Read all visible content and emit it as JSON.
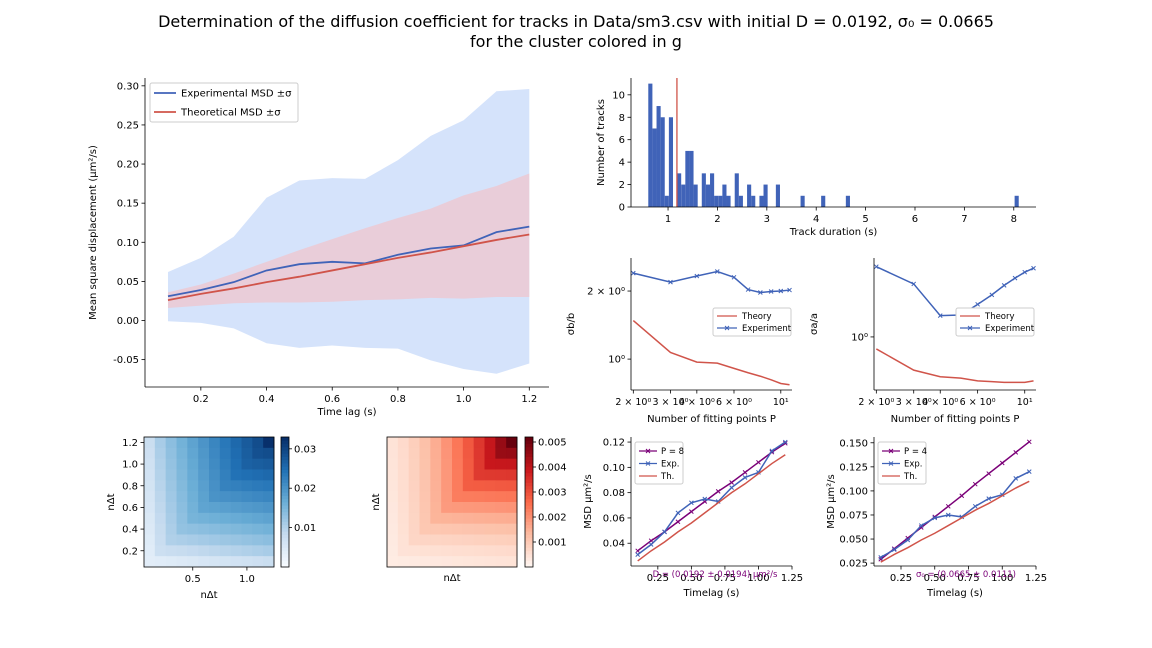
{
  "title": {
    "line1": "Determination of the diffusion coefficient for tracks in Data/sm3.csv with initial D = 0.0192, σ₀ = 0.0665",
    "line2": "for the cluster colored in g"
  },
  "colors": {
    "experiment": "#4063b8",
    "theory": "#d0544a",
    "exp_band": "#d5e3fb",
    "th_band": "#ecc9d2",
    "fit": "#7b0078"
  },
  "chart_data": [
    {
      "id": "msd",
      "type": "line",
      "xlabel": "Time lag (s)",
      "ylabel": "Mean square displacement (μm²/s)",
      "xlim": [
        0.03,
        1.26
      ],
      "ylim": [
        -0.085,
        0.31
      ],
      "xticks": [
        0.2,
        0.4,
        0.6,
        0.8,
        1.0,
        1.2
      ],
      "yticks": [
        -0.05,
        0.0,
        0.05,
        0.1,
        0.15,
        0.2,
        0.25,
        0.3
      ],
      "x": [
        0.1,
        0.2,
        0.3,
        0.4,
        0.5,
        0.6,
        0.7,
        0.8,
        0.9,
        1.0,
        1.1,
        1.2
      ],
      "legend": {
        "placement": "top-left",
        "entries": [
          "Experimental MSD ±σ",
          "Theoretical MSD ±σ"
        ]
      },
      "series": [
        {
          "name": "Experimental MSD ±σ",
          "values": [
            0.031,
            0.039,
            0.049,
            0.064,
            0.072,
            0.075,
            0.073,
            0.084,
            0.092,
            0.096,
            0.113,
            0.12
          ],
          "upper": [
            0.062,
            0.08,
            0.107,
            0.157,
            0.179,
            0.182,
            0.181,
            0.205,
            0.236,
            0.256,
            0.293,
            0.296
          ],
          "lower": [
            -0.001,
            -0.003,
            -0.01,
            -0.029,
            -0.035,
            -0.032,
            -0.035,
            -0.036,
            -0.051,
            -0.062,
            -0.068,
            -0.055
          ]
        },
        {
          "name": "Theoretical MSD ±σ",
          "values": [
            0.026,
            0.034,
            0.041,
            0.049,
            0.056,
            0.064,
            0.072,
            0.08,
            0.087,
            0.095,
            0.103,
            0.11
          ],
          "upper": [
            0.036,
            0.046,
            0.06,
            0.075,
            0.09,
            0.104,
            0.118,
            0.131,
            0.143,
            0.16,
            0.172,
            0.188
          ],
          "lower": [
            0.016,
            0.019,
            0.022,
            0.023,
            0.023,
            0.024,
            0.026,
            0.027,
            0.029,
            0.028,
            0.03,
            0.03
          ]
        }
      ]
    },
    {
      "id": "hist",
      "type": "bar",
      "xlabel": "Track duration (s)",
      "ylabel": "Number of tracks",
      "xlim": [
        0.25,
        8.45
      ],
      "ylim": [
        0,
        11.5
      ],
      "xticks": [
        1,
        2,
        3,
        4,
        5,
        6,
        7,
        8
      ],
      "yticks": [
        0,
        2,
        4,
        6,
        8,
        10
      ],
      "bin_width": 0.0833,
      "bins": [
        [
          0.6,
          11
        ],
        [
          0.683,
          7
        ],
        [
          0.767,
          9
        ],
        [
          0.85,
          8
        ],
        [
          0.933,
          1
        ],
        [
          1.017,
          8
        ],
        [
          1.183,
          3
        ],
        [
          1.267,
          2
        ],
        [
          1.35,
          5
        ],
        [
          1.433,
          5
        ],
        [
          1.517,
          2
        ],
        [
          1.683,
          3
        ],
        [
          1.767,
          2
        ],
        [
          1.85,
          3
        ],
        [
          1.933,
          1
        ],
        [
          2.017,
          1
        ],
        [
          2.1,
          2
        ],
        [
          2.183,
          1
        ],
        [
          2.35,
          3
        ],
        [
          2.433,
          1
        ],
        [
          2.6,
          2
        ],
        [
          2.683,
          1
        ],
        [
          2.85,
          1
        ],
        [
          2.933,
          2
        ],
        [
          3.183,
          2
        ],
        [
          3.683,
          1
        ],
        [
          4.1,
          1
        ],
        [
          4.6,
          1
        ],
        [
          8.017,
          1
        ]
      ],
      "marker_x": 1.18
    },
    {
      "id": "sigma_b",
      "type": "line",
      "xlabel": "Number of fitting points P",
      "ylabel": "σb/b",
      "log_x": true,
      "log_y": true,
      "xlim": [
        1.95,
        11.3
      ],
      "ylim": [
        0.73,
        2.8
      ],
      "xtick_labels": [
        [
          "2 × 10⁰",
          2
        ],
        [
          "3 × 10⁰",
          3
        ],
        [
          "4 × 10⁰",
          4
        ],
        [
          "6 × 10⁰",
          6
        ],
        [
          "10¹",
          10
        ]
      ],
      "ytick_labels": [
        [
          "2 × 10⁰",
          2
        ],
        [
          "10⁰",
          1
        ]
      ],
      "legend": {
        "placement": "center-right",
        "entries": [
          "Theory",
          "Experiment"
        ]
      },
      "series": [
        {
          "name": "Theory",
          "x": [
            2,
            3,
            4,
            5,
            6,
            7,
            8,
            9,
            10,
            11
          ],
          "values": [
            1.48,
            1.07,
            0.97,
            0.96,
            0.91,
            0.87,
            0.84,
            0.81,
            0.78,
            0.77
          ]
        },
        {
          "name": "Experiment",
          "x": [
            2,
            3,
            4,
            5,
            6,
            7,
            8,
            9,
            10,
            11
          ],
          "values": [
            2.4,
            2.19,
            2.33,
            2.44,
            2.3,
            2.03,
            1.97,
            1.99,
            2.0,
            2.02
          ]
        }
      ]
    },
    {
      "id": "sigma_a",
      "type": "line",
      "xlabel": "Number of fitting points P",
      "ylabel": "σa/a",
      "log_x": true,
      "log_y": true,
      "xlim": [
        1.95,
        11.3
      ],
      "ylim": [
        0.54,
        2.5
      ],
      "xtick_labels": [
        [
          "2 × 10⁰",
          2
        ],
        [
          "3 × 10⁰",
          3
        ],
        [
          "4 × 10⁰",
          4
        ],
        [
          "6 × 10⁰",
          6
        ],
        [
          "10¹",
          10
        ]
      ],
      "ytick_labels": [
        [
          "10⁰",
          1
        ]
      ],
      "legend": {
        "placement": "center-right",
        "entries": [
          "Theory",
          "Experiment"
        ]
      },
      "series": [
        {
          "name": "Theory",
          "x": [
            2,
            3,
            4,
            5,
            6,
            7,
            8,
            9,
            10,
            11
          ],
          "values": [
            0.87,
            0.68,
            0.63,
            0.62,
            0.6,
            0.595,
            0.59,
            0.59,
            0.59,
            0.6
          ]
        },
        {
          "name": "Experiment",
          "x": [
            2,
            3,
            4,
            5,
            6,
            7,
            8,
            9,
            10,
            11
          ],
          "values": [
            2.26,
            1.85,
            1.28,
            1.29,
            1.46,
            1.63,
            1.82,
            1.98,
            2.12,
            2.22
          ]
        }
      ]
    },
    {
      "id": "fit_b",
      "type": "line",
      "xlabel": "Timelag (s)",
      "ylabel": "MSD μm²/s",
      "xlim": [
        0.05,
        1.25
      ],
      "ylim": [
        0.022,
        0.124
      ],
      "xticks": [
        0.25,
        0.5,
        0.75,
        1.0,
        1.25
      ],
      "yticks": [
        0.04,
        0.06,
        0.08,
        0.1,
        0.12
      ],
      "x": [
        0.1,
        0.2,
        0.3,
        0.4,
        0.5,
        0.6,
        0.7,
        0.8,
        0.9,
        1.0,
        1.1,
        1.2
      ],
      "legend": {
        "placement": "top-left",
        "entries": [
          "P = 8",
          "Exp.",
          "Th."
        ]
      },
      "annotation": "D = (0.0192 ± 0.0194) μm²/s",
      "series": [
        {
          "name": "P = 8",
          "values": [
            0.034,
            0.042,
            0.049,
            0.057,
            0.065,
            0.073,
            0.081,
            0.088,
            0.096,
            0.104,
            0.112,
            0.119
          ]
        },
        {
          "name": "Exp.",
          "values": [
            0.031,
            0.039,
            0.049,
            0.064,
            0.072,
            0.075,
            0.073,
            0.084,
            0.092,
            0.096,
            0.113,
            0.12
          ]
        },
        {
          "name": "Th.",
          "values": [
            0.026,
            0.034,
            0.041,
            0.049,
            0.056,
            0.064,
            0.072,
            0.08,
            0.087,
            0.095,
            0.103,
            0.11
          ]
        }
      ]
    },
    {
      "id": "fit_a",
      "type": "line",
      "xlabel": "Timelag (s)",
      "ylabel": "MSD μm²/s",
      "xlim": [
        0.05,
        1.25
      ],
      "ylim": [
        0.022,
        0.156
      ],
      "xticks": [
        0.25,
        0.5,
        0.75,
        1.0,
        1.25
      ],
      "yticks": [
        0.025,
        0.05,
        0.075,
        0.1,
        0.125,
        0.15
      ],
      "x": [
        0.1,
        0.2,
        0.3,
        0.4,
        0.5,
        0.6,
        0.7,
        0.8,
        0.9,
        1.0,
        1.1,
        1.2
      ],
      "legend": {
        "placement": "top-left",
        "entries": [
          "P = 4",
          "Exp.",
          "Th."
        ]
      },
      "annotation": "σ₀ = (0.0665 ± 0.0111)",
      "series": [
        {
          "name": "P = 4",
          "values": [
            0.029,
            0.04,
            0.051,
            0.062,
            0.073,
            0.084,
            0.095,
            0.107,
            0.118,
            0.129,
            0.14,
            0.151
          ]
        },
        {
          "name": "Exp.",
          "values": [
            0.031,
            0.039,
            0.049,
            0.064,
            0.072,
            0.075,
            0.073,
            0.084,
            0.092,
            0.096,
            0.113,
            0.12
          ]
        },
        {
          "name": "Th.",
          "values": [
            0.026,
            0.034,
            0.041,
            0.049,
            0.056,
            0.064,
            0.072,
            0.08,
            0.087,
            0.095,
            0.103,
            0.11
          ]
        }
      ]
    },
    {
      "id": "heat_exp",
      "type": "heatmap",
      "xlabel": "nΔt",
      "ylabel": "nΔt",
      "colormap": "Blues",
      "extent": [
        0.05,
        1.25,
        0.05,
        1.25
      ],
      "xticks": [
        0.5,
        1.0
      ],
      "yticks": [
        0.2,
        0.4,
        0.6,
        0.8,
        1.0,
        1.2
      ],
      "colorbar_ticks": [
        0.01,
        0.02,
        0.03
      ],
      "clim": [
        0,
        0.033
      ]
    },
    {
      "id": "heat_th",
      "type": "heatmap",
      "xlabel": "nΔt",
      "ylabel": "nΔt",
      "colormap": "Reds",
      "colorbar_ticks": [
        0.001,
        0.002,
        0.003,
        0.004,
        0.005
      ],
      "clim": [
        0,
        0.0052
      ]
    }
  ]
}
